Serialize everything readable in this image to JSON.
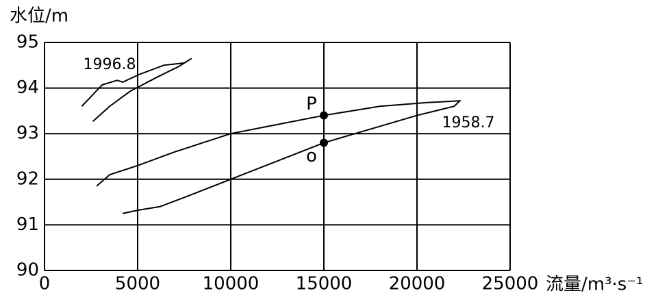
{
  "chart_data": {
    "type": "line",
    "y_label": "水位/m",
    "x_label": "流量/m³·s⁻¹",
    "xlim": [
      0,
      25000
    ],
    "ylim": [
      90,
      95
    ],
    "xticks": [
      0,
      5000,
      10000,
      15000,
      20000,
      25000
    ],
    "yticks": [
      90,
      91,
      92,
      93,
      94,
      95
    ],
    "grid": true,
    "series": [
      {
        "name": "1996.8",
        "color": "#000000",
        "x": [
          2000,
          3100,
          3900,
          4200,
          5100,
          6400,
          7500,
          7900,
          7200,
          6100,
          4600,
          3500,
          2600
        ],
        "values": [
          93.6,
          94.07,
          94.17,
          94.13,
          94.3,
          94.5,
          94.55,
          94.65,
          94.47,
          94.25,
          93.93,
          93.6,
          93.27
        ]
      },
      {
        "name": "1958.7",
        "color": "#000000",
        "x": [
          2800,
          3500,
          5000,
          7000,
          10000,
          12500,
          15000,
          18000,
          20500,
          22300,
          22000,
          20000,
          17500,
          15000,
          12500,
          10000,
          7500,
          6200,
          5000,
          4200
        ],
        "values": [
          91.85,
          92.1,
          92.3,
          92.6,
          93.0,
          93.2,
          93.4,
          93.6,
          93.68,
          93.72,
          93.6,
          93.4,
          93.1,
          92.8,
          92.4,
          92.0,
          91.6,
          91.4,
          91.32,
          91.25
        ]
      }
    ],
    "points": [
      {
        "label": "P",
        "x": 15000,
        "y": 93.4
      },
      {
        "label": "o",
        "x": 15000,
        "y": 92.8
      }
    ]
  }
}
